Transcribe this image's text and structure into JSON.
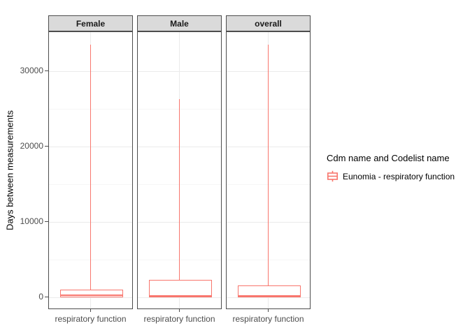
{
  "chart_data": {
    "type": "boxplot",
    "title": "",
    "xlabel": "",
    "ylabel": "Days between measurements",
    "ylim": [
      -1675,
      35175
    ],
    "yticks": [
      0,
      10000,
      20000,
      30000
    ],
    "ytick_labels": [
      "0",
      "10000",
      "20000",
      "30000"
    ],
    "yticks_minor": [
      5000,
      15000,
      25000
    ],
    "grid": true,
    "facets": [
      {
        "label": "Female",
        "category": "respiratory function",
        "stats": {
          "min": 0,
          "q1": 0,
          "median": 300,
          "q3": 1000,
          "max": 33500
        }
      },
      {
        "label": "Male",
        "category": "respiratory function",
        "stats": {
          "min": 0,
          "q1": 0,
          "median": 200,
          "q3": 2300,
          "max": 26300
        }
      },
      {
        "label": "overall",
        "category": "respiratory function",
        "stats": {
          "min": 0,
          "q1": 0,
          "median": 180,
          "q3": 1550,
          "max": 33500
        }
      }
    ],
    "legend": {
      "title": "Cdm name and Codelist name",
      "position": "right",
      "items": [
        {
          "label": "Eunomia - respiratory function",
          "color": "#F8766D"
        }
      ]
    }
  },
  "colors": {
    "accent": "#F8766D",
    "box_fill": "#FFFFFF",
    "grid_major": "#EBEBEB",
    "grid_minor": "#F6F6F6",
    "strip_bg": "#DADADA",
    "strip_text": "#1A1A1A",
    "panel_border": "#4D4D4D",
    "axis_text": "#4D4D4D",
    "text": "#000000"
  }
}
